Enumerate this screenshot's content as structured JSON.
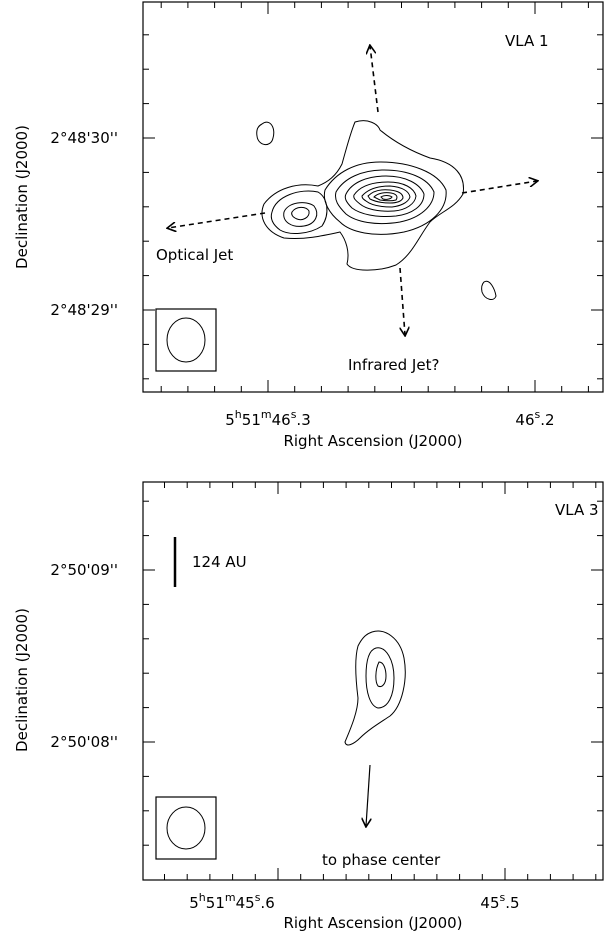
{
  "panels": [
    {
      "label": "VLA 1",
      "y_axis_label": "Declination (J2000)",
      "x_axis_label": "Right Ascension (J2000)",
      "y_ticks": [
        "2°48'30''",
        "2°48'29''"
      ],
      "x_ticks": [
        [
          {
            "t": "5"
          },
          {
            "t": "h",
            "sup": true
          },
          {
            "t": "51"
          },
          {
            "t": "m",
            "sup": true
          },
          {
            "t": "46"
          },
          {
            "t": "s",
            "sup": true
          },
          {
            "t": ".3"
          }
        ],
        [
          {
            "t": "46"
          },
          {
            "t": "s",
            "sup": true
          },
          {
            "t": ".2"
          }
        ]
      ],
      "annotations": [
        "Optical Jet",
        "Infrared Jet?"
      ]
    },
    {
      "label": "VLA 3",
      "y_axis_label": "Declination (J2000)",
      "x_axis_label": "Right Ascension (J2000)",
      "y_ticks": [
        "2°50'09''",
        "2°50'08''"
      ],
      "x_ticks": [
        [
          {
            "t": "5"
          },
          {
            "t": "h",
            "sup": true
          },
          {
            "t": "51"
          },
          {
            "t": "m",
            "sup": true
          },
          {
            "t": "45"
          },
          {
            "t": "s",
            "sup": true
          },
          {
            "t": ".6"
          }
        ],
        [
          {
            "t": "45"
          },
          {
            "t": "s",
            "sup": true
          },
          {
            "t": ".5"
          }
        ]
      ],
      "scale_bar": "124 AU",
      "annotations": [
        "to phase center"
      ]
    }
  ]
}
